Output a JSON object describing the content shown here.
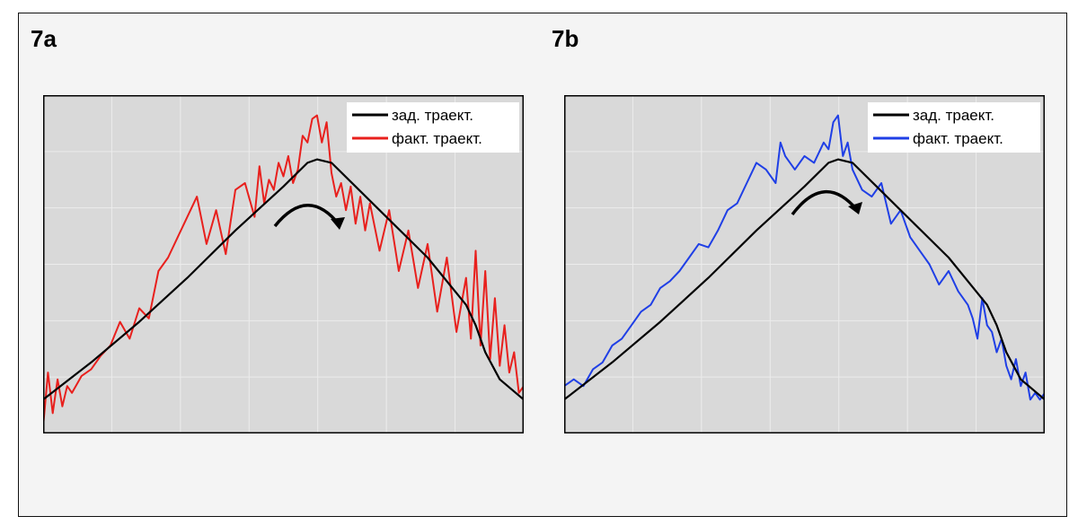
{
  "panels": [
    {
      "label": "7a",
      "legend": {
        "placement": "top-right"
      },
      "colors": {
        "planned": "#000000",
        "actual": "#e8201d"
      }
    },
    {
      "label": "7b",
      "legend": {
        "placement": "top-right"
      },
      "colors": {
        "planned": "#000000",
        "actual": "#1f3fe6"
      }
    }
  ],
  "chart_data": [
    {
      "type": "line",
      "title": "",
      "xlabel": "",
      "ylabel": "",
      "xlim": [
        0,
        100
      ],
      "ylim": [
        0,
        100
      ],
      "grid": true,
      "legend_placement": "top-right",
      "series": [
        {
          "name": "зад. траект.",
          "color": "#000000",
          "x": [
            0,
            10,
            20,
            30,
            40,
            50,
            55,
            57,
            60,
            65,
            70,
            80,
            88,
            90,
            92,
            95,
            100
          ],
          "y": [
            10,
            21,
            33,
            46,
            60,
            73,
            80,
            81,
            80,
            73,
            66,
            52,
            38,
            32,
            24,
            16,
            10
          ]
        },
        {
          "name": "факт. траект.",
          "color": "#e8201d",
          "x": [
            0,
            1,
            2,
            3,
            4,
            5,
            6,
            8,
            10,
            12,
            14,
            16,
            18,
            20,
            22,
            24,
            26,
            28,
            30,
            32,
            34,
            36,
            38,
            40,
            42,
            44,
            45,
            46,
            47,
            48,
            49,
            50,
            51,
            52,
            53,
            54,
            55,
            56,
            57,
            58,
            59,
            60,
            61,
            62,
            63,
            64,
            65,
            66,
            67,
            68,
            70,
            72,
            74,
            76,
            78,
            80,
            82,
            84,
            86,
            88,
            89,
            90,
            91,
            92,
            93,
            94,
            95,
            96,
            97,
            98,
            99,
            100
          ],
          "y": [
            2,
            18,
            6,
            16,
            8,
            14,
            12,
            17,
            19,
            23,
            26,
            33,
            28,
            37,
            34,
            48,
            52,
            58,
            64,
            70,
            56,
            66,
            53,
            72,
            74,
            64,
            79,
            68,
            75,
            72,
            80,
            76,
            82,
            74,
            78,
            88,
            86,
            93,
            94,
            86,
            92,
            77,
            70,
            74,
            66,
            73,
            62,
            70,
            60,
            68,
            54,
            66,
            48,
            60,
            43,
            56,
            36,
            52,
            30,
            46,
            28,
            54,
            26,
            48,
            22,
            40,
            20,
            32,
            18,
            24,
            12,
            14
          ]
        }
      ]
    },
    {
      "type": "line",
      "title": "",
      "xlabel": "",
      "ylabel": "",
      "xlim": [
        0,
        100
      ],
      "ylim": [
        0,
        100
      ],
      "grid": true,
      "legend_placement": "top-right",
      "series": [
        {
          "name": "зад. траект.",
          "color": "#000000",
          "x": [
            0,
            10,
            20,
            30,
            40,
            50,
            55,
            57,
            60,
            65,
            70,
            80,
            88,
            90,
            92,
            95,
            100
          ],
          "y": [
            10,
            21,
            33,
            46,
            60,
            73,
            80,
            81,
            80,
            73,
            66,
            52,
            38,
            32,
            24,
            16,
            10
          ]
        },
        {
          "name": "факт. траект.",
          "color": "#1f3fe6",
          "x": [
            0,
            2,
            4,
            6,
            8,
            10,
            12,
            14,
            16,
            18,
            20,
            22,
            24,
            26,
            28,
            30,
            32,
            34,
            36,
            38,
            40,
            42,
            44,
            45,
            46,
            48,
            50,
            52,
            54,
            55,
            56,
            57,
            58,
            59,
            60,
            62,
            64,
            66,
            68,
            70,
            72,
            74,
            76,
            78,
            80,
            82,
            84,
            85,
            86,
            87,
            88,
            89,
            90,
            91,
            92,
            93,
            94,
            95,
            96,
            97,
            98,
            99,
            100
          ],
          "y": [
            14,
            16,
            14,
            19,
            21,
            26,
            28,
            32,
            36,
            38,
            43,
            45,
            48,
            52,
            56,
            55,
            60,
            66,
            68,
            74,
            80,
            78,
            74,
            86,
            82,
            78,
            82,
            80,
            86,
            84,
            92,
            94,
            82,
            86,
            78,
            72,
            70,
            74,
            62,
            66,
            58,
            54,
            50,
            44,
            48,
            42,
            38,
            34,
            28,
            40,
            32,
            30,
            24,
            28,
            20,
            16,
            22,
            14,
            18,
            10,
            12,
            10,
            12
          ]
        }
      ]
    }
  ]
}
